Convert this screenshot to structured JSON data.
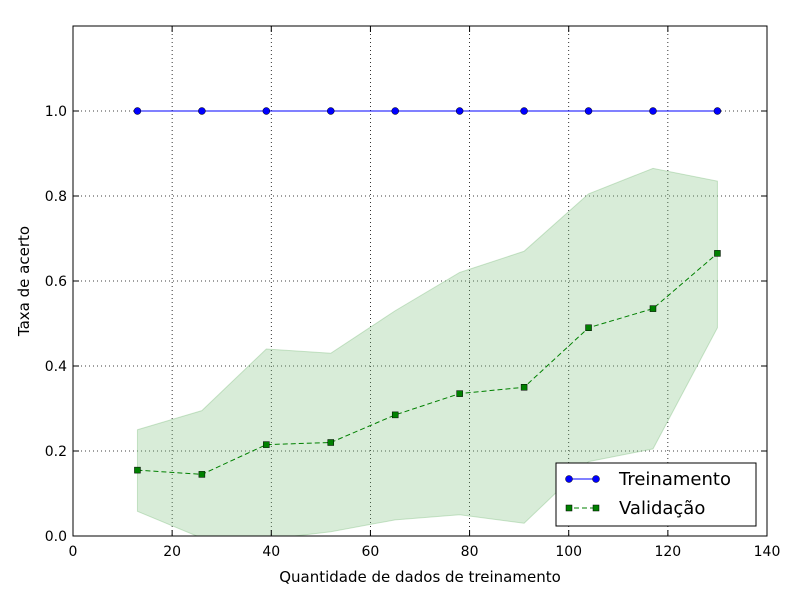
{
  "chart_data": {
    "type": "line",
    "title": "",
    "xlabel": "Quantidade de dados de treinamento",
    "ylabel": "Taxa de acerto",
    "xlim": [
      0,
      140
    ],
    "ylim": [
      0.0,
      1.2
    ],
    "xticks": [
      0,
      20,
      40,
      60,
      80,
      100,
      120,
      140
    ],
    "xtick_labels": [
      "0",
      "20",
      "40",
      "60",
      "80",
      "100",
      "120",
      "140"
    ],
    "yticks": [
      0.0,
      0.2,
      0.4,
      0.6,
      0.8,
      1.0
    ],
    "ytick_labels": [
      "0.0",
      "0.2",
      "0.4",
      "0.6",
      "0.8",
      "1.0"
    ],
    "grid": true,
    "legend_position": "bottom-right",
    "x": [
      13,
      26,
      39,
      52,
      65,
      78,
      91,
      104,
      117,
      130
    ],
    "series": [
      {
        "name": "Treinamento",
        "color": "#0000ff",
        "line_style": "solid",
        "marker": "circle",
        "values": [
          1.0,
          1.0,
          1.0,
          1.0,
          1.0,
          1.0,
          1.0,
          1.0,
          1.0,
          1.0
        ]
      },
      {
        "name": "Validação",
        "color": "#008000",
        "line_style": "dashed",
        "marker": "square",
        "values": [
          0.155,
          0.145,
          0.215,
          0.22,
          0.285,
          0.335,
          0.35,
          0.49,
          0.535,
          0.665
        ],
        "band_upper": [
          0.25,
          0.295,
          0.44,
          0.43,
          0.53,
          0.62,
          0.67,
          0.805,
          0.865,
          0.835
        ],
        "band_lower": [
          0.058,
          -0.005,
          -0.008,
          0.01,
          0.038,
          0.05,
          0.03,
          0.175,
          0.205,
          0.49
        ],
        "band_color": "#7fbf7f"
      }
    ]
  }
}
